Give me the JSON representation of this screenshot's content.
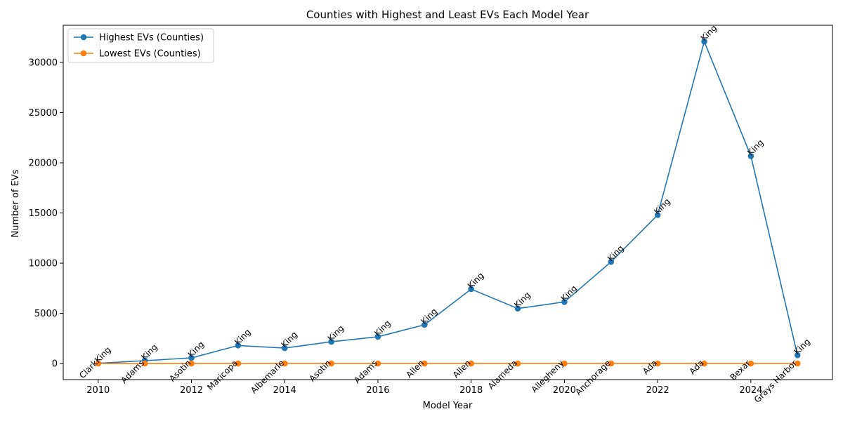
{
  "chart_data": {
    "type": "line",
    "title": "Counties with Highest and Least EVs Each Model Year",
    "xlabel": "Model Year",
    "ylabel": "Number of EVs",
    "xlim": [
      2009.25,
      2025.75
    ],
    "ylim": [
      -1600,
      33700
    ],
    "xticks": [
      2010,
      2012,
      2014,
      2016,
      2018,
      2020,
      2022,
      2024
    ],
    "yticks": [
      0,
      5000,
      10000,
      15000,
      20000,
      25000,
      30000
    ],
    "grid": false,
    "legend_position": "top-left",
    "x": [
      2010,
      2011,
      2012,
      2013,
      2014,
      2015,
      2016,
      2017,
      2018,
      2019,
      2020,
      2021,
      2022,
      2023,
      2024,
      2025
    ],
    "series": [
      {
        "name": "Highest EVs (Counties)",
        "color": "#1f77b4",
        "values": [
          20,
          290,
          560,
          1800,
          1540,
          2170,
          2670,
          3860,
          7420,
          5480,
          6140,
          10130,
          14800,
          32080,
          20670,
          830
        ],
        "labels": [
          "King",
          "King",
          "King",
          "King",
          "King",
          "King",
          "King",
          "King",
          "King",
          "King",
          "King",
          "King",
          "King",
          "King",
          "King",
          "King"
        ]
      },
      {
        "name": "Lowest EVs (Counties)",
        "color": "#ff7f0e",
        "values": [
          1,
          1,
          1,
          1,
          1,
          1,
          1,
          1,
          1,
          1,
          1,
          1,
          1,
          1,
          1,
          1
        ],
        "labels": [
          "Clark",
          "Adams",
          "Asotin",
          "Maricopa",
          "Albemarle",
          "Asotin",
          "Adams",
          "Allen",
          "Allen",
          "Alameda",
          "Allegheny",
          "Anchorage",
          "Ada",
          "Ada",
          "Bexar",
          "Grays Harbor"
        ]
      }
    ]
  }
}
